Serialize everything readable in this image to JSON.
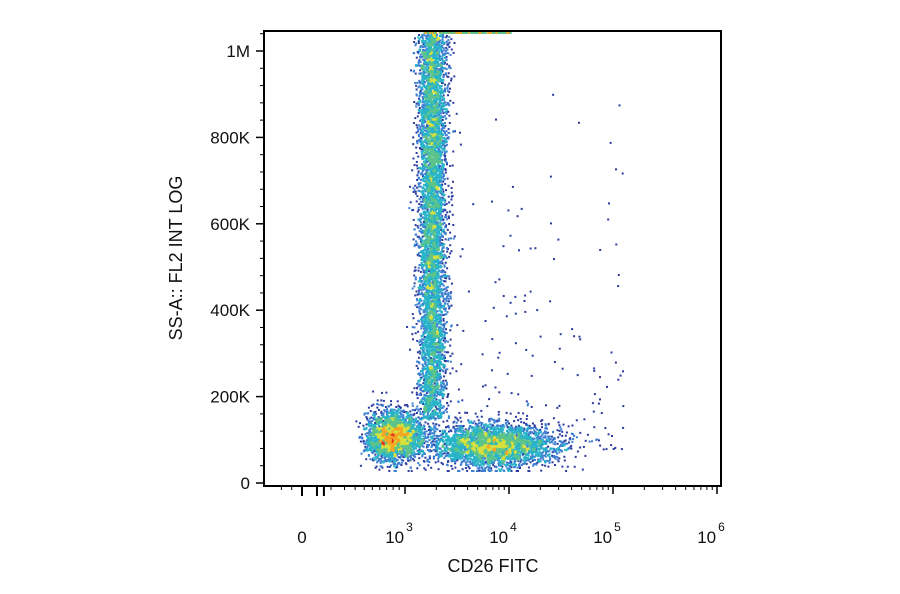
{
  "chart_data": {
    "type": "scatter",
    "subtype": "flow-cytometry density dot plot",
    "xlabel": "CD26 FITC",
    "ylabel": "SS-A:: FL2 INT LOG",
    "x_scale": "biexponential (logicle)",
    "y_scale": "linear",
    "x_ticks": [
      {
        "value": 0,
        "base": "0",
        "exp": ""
      },
      {
        "value": 1000,
        "base": "10",
        "exp": "3"
      },
      {
        "value": 10000,
        "base": "10",
        "exp": "4"
      },
      {
        "value": 100000,
        "base": "10",
        "exp": "5"
      },
      {
        "value": 1000000,
        "base": "10",
        "exp": "6"
      }
    ],
    "y_ticks": [
      {
        "value": 0,
        "label": "0"
      },
      {
        "value": 200000,
        "label": "200K"
      },
      {
        "value": 400000,
        "label": "400K"
      },
      {
        "value": 600000,
        "label": "600K"
      },
      {
        "value": 800000,
        "label": "800K"
      },
      {
        "value": 1000000,
        "label": "1M"
      }
    ],
    "xlim": [
      -300,
      1000000
    ],
    "ylim": [
      0,
      1050000
    ],
    "grid": false,
    "color_scale": [
      "#2b3a9e",
      "#3d7fd1",
      "#28b4c8",
      "#5cc48a",
      "#d8e03c",
      "#f5a623",
      "#e8321e"
    ],
    "populations": [
      {
        "label": "",
        "x_center": 800,
        "y_center": 110000,
        "x_spread_decades": 0.13,
        "y_spread": 28000,
        "count": 2600,
        "peak_density": "high"
      },
      {
        "label": "",
        "x_center": 1800,
        "y_center": 600000,
        "x_spread_decades": 0.07,
        "y_spread": 450000,
        "count": 6000,
        "peak_density": "medium"
      },
      {
        "label": "",
        "x_center": 7000,
        "y_center": 90000,
        "x_spread_decades": 0.3,
        "y_spread": 25000,
        "count": 3200,
        "peak_density": "medium"
      }
    ]
  }
}
